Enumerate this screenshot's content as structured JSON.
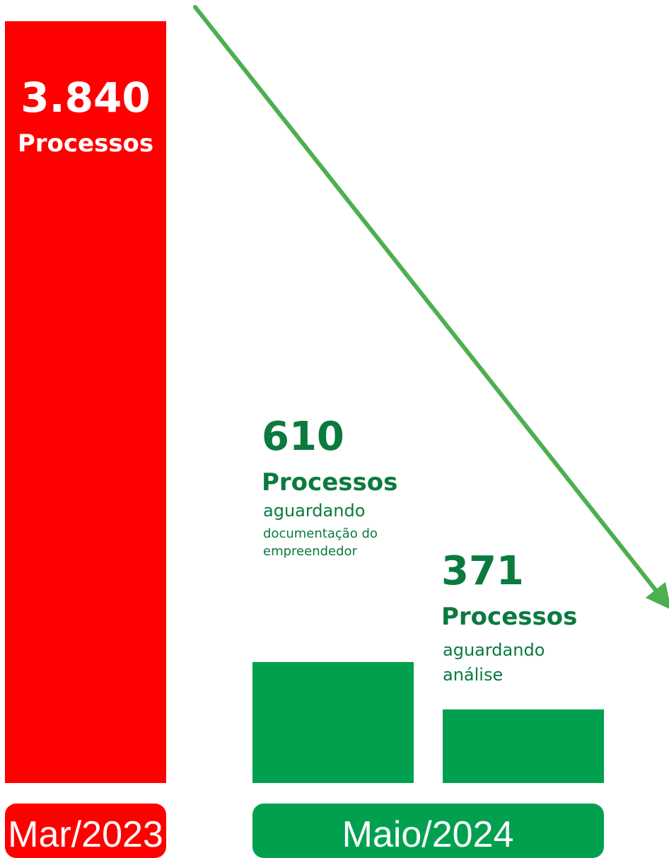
{
  "chart_data": {
    "type": "bar",
    "title": "",
    "xlabel": "",
    "ylabel": "",
    "ylim": [
      0,
      3840
    ],
    "grid": false,
    "legend": "none",
    "categories": [
      "Mar/2023",
      "Maio/2024"
    ],
    "bars": [
      {
        "category": "Mar/2023",
        "value": 3840,
        "value_label": "3.840",
        "unit_label": "Processos",
        "description": [],
        "color": "#ff0000"
      },
      {
        "category": "Maio/2024",
        "value": 610,
        "value_label": "610",
        "unit_label": "Processos",
        "description": [
          "aguardando",
          "documentação do",
          "empreendedor"
        ],
        "color": "#00a04f"
      },
      {
        "category": "Maio/2024",
        "value": 371,
        "value_label": "371",
        "unit_label": "Processos",
        "description": [
          "aguardando",
          "análise"
        ],
        "color": "#00a04f"
      }
    ],
    "trend_arrow": {
      "direction": "down",
      "color": "#4caf50"
    },
    "colors": {
      "red": "#ff0000",
      "green": "#00a04f",
      "label_green": "#0b7a3e",
      "arrow_green": "#4caf50"
    }
  }
}
